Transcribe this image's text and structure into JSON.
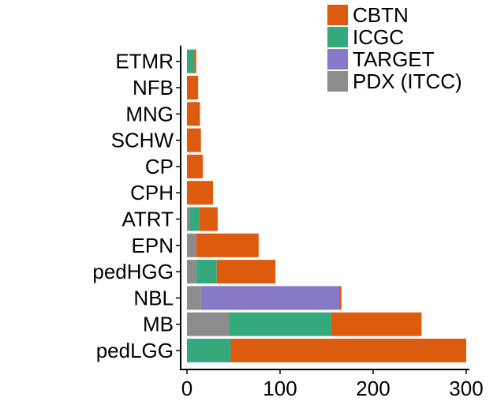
{
  "chart_data": {
    "type": "bar",
    "orientation": "horizontal",
    "stacked": true,
    "categories": [
      "pedLGG",
      "MB",
      "NBL",
      "pedHGG",
      "EPN",
      "ATRT",
      "CPH",
      "CP",
      "SCHW",
      "MNG",
      "NFB",
      "ETMR"
    ],
    "series": [
      {
        "name": "PDX (ITCC)",
        "color": "#8c8c8c",
        "values": [
          0,
          45,
          15,
          10,
          10,
          3,
          0,
          0,
          0,
          0,
          0,
          0
        ]
      },
      {
        "name": "TARGET",
        "color": "#8878c8",
        "values": [
          0,
          0,
          149,
          0,
          0,
          0,
          0,
          0,
          0,
          0,
          0,
          0
        ]
      },
      {
        "name": "ICGC",
        "color": "#35a97e",
        "values": [
          47,
          110,
          0,
          22,
          0,
          10,
          0,
          0,
          0,
          0,
          0,
          8
        ]
      },
      {
        "name": "CBTN",
        "color": "#dc5b0e",
        "values": [
          253,
          97,
          2,
          63,
          67,
          20,
          28,
          17,
          15,
          14,
          12,
          2
        ]
      }
    ],
    "x_ticks": [
      0,
      100,
      200,
      300
    ],
    "xlim": [
      0,
      300
    ],
    "title": "",
    "xlabel": "",
    "ylabel": "",
    "grid": false,
    "legend": {
      "position": "top-right",
      "order": [
        "CBTN",
        "ICGC",
        "TARGET",
        "PDX (ITCC)"
      ]
    }
  }
}
